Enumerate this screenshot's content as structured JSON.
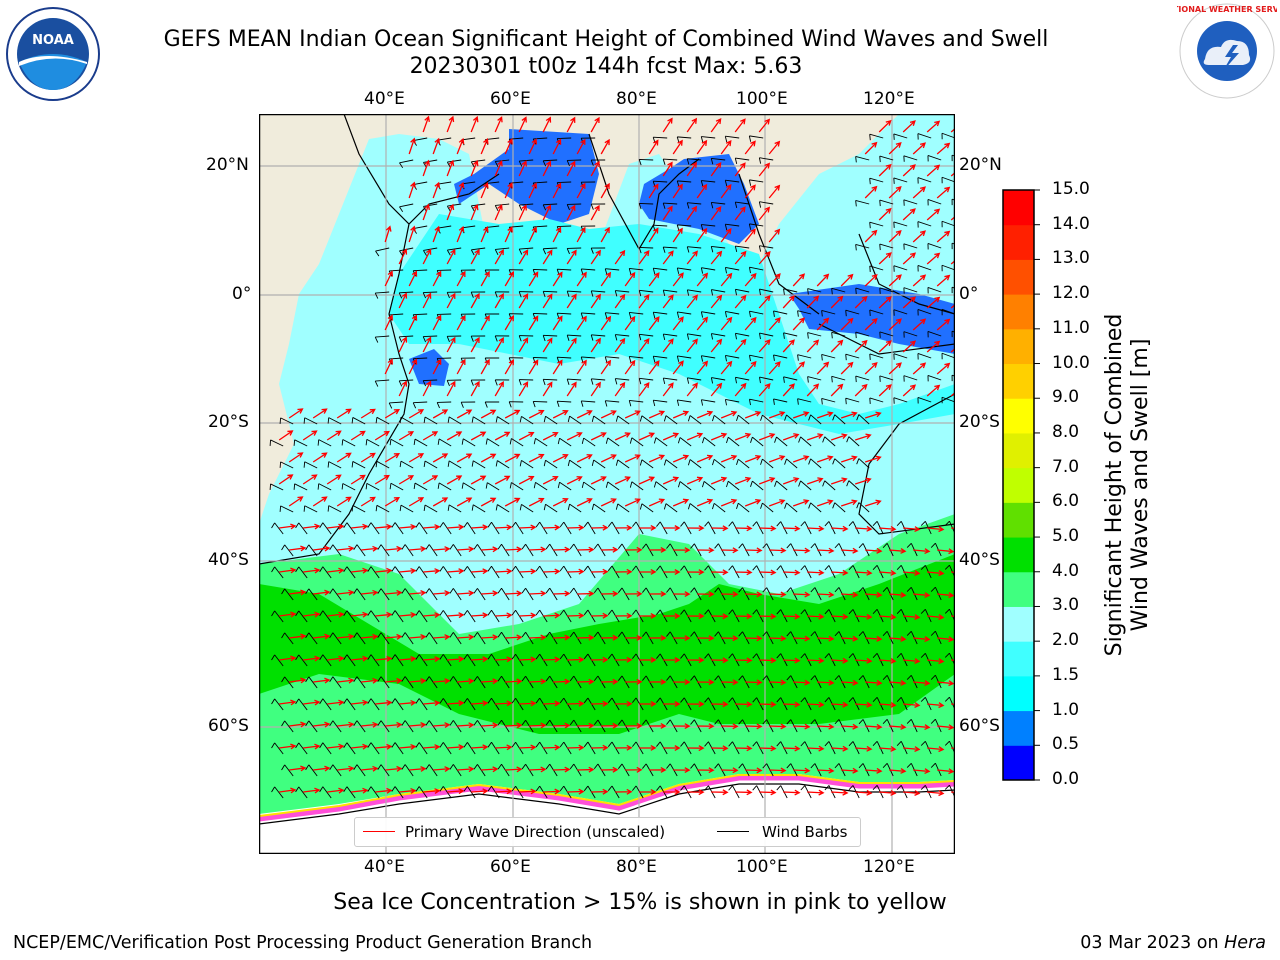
{
  "title_line1": "GEFS MEAN Indian Ocean Significant Height of Combined Wind Waves and Swell",
  "title_line2": "20230301 t00z 144h fcst   Max: 5.63",
  "top_lon_ticks": [
    "40°E",
    "60°E",
    "80°E",
    "100°E",
    "120°E"
  ],
  "bottom_lon_ticks": [
    "40°E",
    "60°E",
    "80°E",
    "100°E",
    "120°E"
  ],
  "left_lat_ticks": [
    "20°N",
    "0°",
    "20°S",
    "40°S",
    "60°S"
  ],
  "right_lat_ticks": [
    "20°N",
    "0°",
    "20°S",
    "40°S",
    "60°S"
  ],
  "colorbar": {
    "ticks": [
      "0.0",
      "0.5",
      "1.0",
      "1.5",
      "2.0",
      "3.0",
      "4.0",
      "5.0",
      "6.0",
      "7.0",
      "8.0",
      "9.0",
      "10.0",
      "11.0",
      "12.0",
      "13.0",
      "14.0",
      "15.0"
    ],
    "colors": [
      "#0000ff",
      "#0080ff",
      "#00ffff",
      "#40ffff",
      "#a0ffff",
      "#40ff80",
      "#00e000",
      "#60e000",
      "#c0ff00",
      "#e0f000",
      "#ffff00",
      "#ffd000",
      "#ffb000",
      "#ff8000",
      "#ff5000",
      "#ff2000",
      "#ff0000"
    ],
    "label_line1": "Significant Height of Combined",
    "label_line2": "Wind Waves and Swell [m]"
  },
  "legend": {
    "wave_label": "Primary Wave Direction (unscaled)",
    "barb_label": "Wind Barbs",
    "wave_color": "#ff0000",
    "barb_color": "#000000"
  },
  "subtitle": "Sea Ice Concentration > 15% is shown in pink to yellow",
  "credit_left": "NCEP/EMC/Verification Post Processing Product Generation Branch",
  "credit_date": "03 Mar 2023 on ",
  "credit_host": "Hera",
  "logos": {
    "noaa": "NOAA",
    "nws_text": "NATIONAL WEATHER SERVICE"
  },
  "colors": {
    "land": "#f0ecdc",
    "ocean_base": "#a0ffff",
    "grid": "#b0b0b0"
  }
}
